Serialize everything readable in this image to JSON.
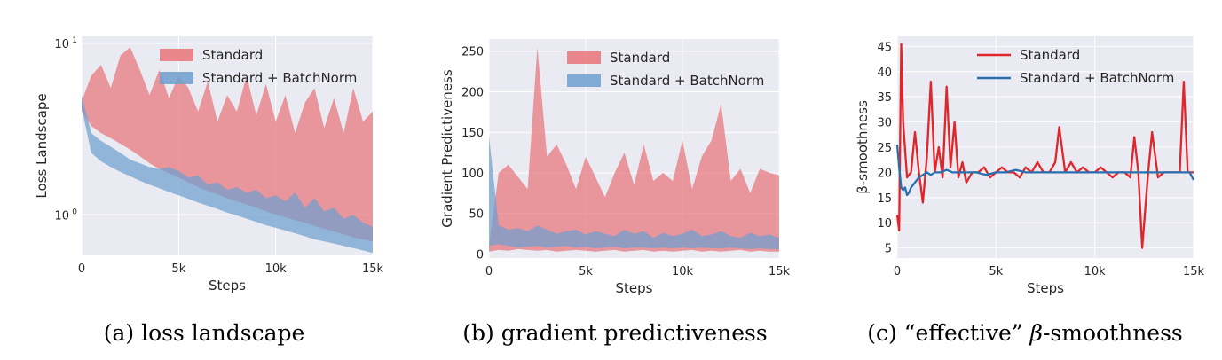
{
  "colors": {
    "standard": "#e0262b",
    "batchnorm": "#2a6fad",
    "standard_fill": "#e8747a",
    "batchnorm_fill": "#6fa0cf",
    "panel_bg": "#eaeaf2",
    "grid": "#ffffff"
  },
  "chart_data": [
    {
      "type": "area",
      "title": "",
      "xlabel": "Steps",
      "ylabel": "Loss Landscape",
      "yscale": "log",
      "xlim": [
        0,
        15000
      ],
      "ylim": [
        0.58,
        11
      ],
      "xticks": [
        {
          "value": 0,
          "label": "0"
        },
        {
          "value": 5000,
          "label": "5k"
        },
        {
          "value": 10000,
          "label": "10k"
        },
        {
          "value": 15000,
          "label": "15k"
        }
      ],
      "yticks": [
        {
          "value": 1,
          "label": "10",
          "sup": "0"
        },
        {
          "value": 10,
          "label": "10",
          "sup": "1"
        }
      ],
      "legend": {
        "position": "top-right",
        "standard": "Standard",
        "batchnorm": "Standard + BatchNorm",
        "style": "patch"
      },
      "series": [
        {
          "name": "Standard",
          "x": [
            0,
            500,
            1000,
            1500,
            2000,
            2500,
            3000,
            3500,
            4000,
            4500,
            5000,
            5500,
            6000,
            6500,
            7000,
            7500,
            8000,
            8500,
            9000,
            9500,
            10000,
            10500,
            11000,
            11500,
            12000,
            12500,
            13000,
            13500,
            14000,
            14500,
            15000
          ],
          "lower": [
            4.0,
            3.3,
            3.0,
            2.8,
            2.6,
            2.4,
            2.2,
            2.0,
            1.85,
            1.75,
            1.65,
            1.55,
            1.45,
            1.38,
            1.32,
            1.25,
            1.2,
            1.15,
            1.1,
            1.05,
            1.0,
            0.97,
            0.93,
            0.9,
            0.86,
            0.83,
            0.8,
            0.77,
            0.74,
            0.72,
            0.7
          ],
          "upper": [
            4.6,
            6.5,
            7.5,
            5.5,
            8.5,
            9.5,
            7.0,
            5.0,
            7.0,
            4.8,
            6.5,
            5.5,
            4.0,
            6.0,
            3.5,
            5.0,
            4.0,
            6.5,
            3.8,
            5.8,
            3.5,
            5.0,
            3.0,
            4.5,
            5.5,
            3.2,
            4.8,
            3.0,
            5.5,
            3.5,
            4.0
          ]
        },
        {
          "name": "Standard + BatchNorm",
          "x": [
            0,
            500,
            1000,
            1500,
            2000,
            2500,
            3000,
            3500,
            4000,
            4500,
            5000,
            5500,
            6000,
            6500,
            7000,
            7500,
            8000,
            8500,
            9000,
            9500,
            10000,
            10500,
            11000,
            11500,
            12000,
            12500,
            13000,
            13500,
            14000,
            14500,
            15000
          ],
          "lower": [
            4.2,
            2.3,
            2.05,
            1.9,
            1.78,
            1.68,
            1.58,
            1.5,
            1.43,
            1.36,
            1.3,
            1.24,
            1.18,
            1.13,
            1.08,
            1.03,
            0.99,
            0.95,
            0.91,
            0.87,
            0.84,
            0.81,
            0.78,
            0.75,
            0.72,
            0.7,
            0.68,
            0.66,
            0.64,
            0.62,
            0.6
          ],
          "upper": [
            5.0,
            3.0,
            2.7,
            2.5,
            2.3,
            2.1,
            2.0,
            1.9,
            1.85,
            1.9,
            1.8,
            1.65,
            1.7,
            1.5,
            1.55,
            1.4,
            1.45,
            1.35,
            1.4,
            1.25,
            1.3,
            1.2,
            1.35,
            1.1,
            1.25,
            1.05,
            1.1,
            0.95,
            1.0,
            0.9,
            0.85
          ]
        }
      ]
    },
    {
      "type": "area",
      "title": "",
      "xlabel": "Steps",
      "ylabel": "Gradient Predictiveness",
      "yscale": "linear",
      "xlim": [
        0,
        15000
      ],
      "ylim": [
        -5,
        265
      ],
      "xticks": [
        {
          "value": 0,
          "label": "0"
        },
        {
          "value": 5000,
          "label": "5k"
        },
        {
          "value": 10000,
          "label": "10k"
        },
        {
          "value": 15000,
          "label": "15k"
        }
      ],
      "yticks": [
        {
          "value": 0,
          "label": "0"
        },
        {
          "value": 50,
          "label": "50"
        },
        {
          "value": 100,
          "label": "100"
        },
        {
          "value": 150,
          "label": "150"
        },
        {
          "value": 200,
          "label": "200"
        },
        {
          "value": 250,
          "label": "250"
        }
      ],
      "legend": {
        "position": "top-right",
        "standard": "Standard",
        "batchnorm": "Standard + BatchNorm",
        "style": "patch"
      },
      "series": [
        {
          "name": "Standard",
          "x": [
            0,
            500,
            1000,
            1500,
            2000,
            2500,
            3000,
            3500,
            4000,
            4500,
            5000,
            5500,
            6000,
            6500,
            7000,
            7500,
            8000,
            8500,
            9000,
            9500,
            10000,
            10500,
            11000,
            11500,
            12000,
            12500,
            13000,
            13500,
            14000,
            14500,
            15000
          ],
          "lower": [
            3,
            5,
            4,
            6,
            5,
            4,
            5,
            3,
            4,
            5,
            4,
            3,
            4,
            5,
            3,
            4,
            5,
            3,
            4,
            3,
            4,
            5,
            3,
            4,
            3,
            4,
            5,
            3,
            4,
            3,
            3
          ],
          "upper": [
            10,
            100,
            110,
            95,
            80,
            255,
            120,
            135,
            110,
            80,
            120,
            95,
            70,
            100,
            125,
            85,
            135,
            90,
            100,
            90,
            140,
            80,
            120,
            140,
            185,
            90,
            105,
            75,
            105,
            100,
            97
          ]
        },
        {
          "name": "Standard + BatchNorm",
          "x": [
            0,
            500,
            1000,
            1500,
            2000,
            2500,
            3000,
            3500,
            4000,
            4500,
            5000,
            5500,
            6000,
            6500,
            7000,
            7500,
            8000,
            8500,
            9000,
            9500,
            10000,
            10500,
            11000,
            11500,
            12000,
            12500,
            13000,
            13500,
            14000,
            14500,
            15000
          ],
          "lower": [
            10,
            12,
            10,
            8,
            9,
            10,
            8,
            9,
            10,
            8,
            9,
            7,
            8,
            9,
            7,
            8,
            8,
            7,
            8,
            7,
            8,
            7,
            8,
            7,
            7,
            8,
            7,
            6,
            7,
            6,
            6
          ],
          "upper": [
            145,
            35,
            30,
            32,
            28,
            35,
            30,
            25,
            28,
            30,
            24,
            28,
            25,
            22,
            30,
            25,
            28,
            20,
            26,
            22,
            25,
            30,
            22,
            24,
            28,
            22,
            20,
            26,
            22,
            24,
            20
          ]
        }
      ]
    },
    {
      "type": "line",
      "title": "",
      "xlabel": "Steps",
      "ylabel": "β-smoothness",
      "yscale": "linear",
      "xlim": [
        0,
        15000
      ],
      "ylim": [
        3,
        47
      ],
      "xticks": [
        {
          "value": 0,
          "label": "0"
        },
        {
          "value": 5000,
          "label": "5k"
        },
        {
          "value": 10000,
          "label": "10k"
        },
        {
          "value": 15000,
          "label": "15k"
        }
      ],
      "yticks": [
        {
          "value": 5,
          "label": "5"
        },
        {
          "value": 10,
          "label": "10"
        },
        {
          "value": 15,
          "label": "15"
        },
        {
          "value": 20,
          "label": "20"
        },
        {
          "value": 25,
          "label": "25"
        },
        {
          "value": 30,
          "label": "30"
        },
        {
          "value": 35,
          "label": "35"
        },
        {
          "value": 40,
          "label": "40"
        },
        {
          "value": 45,
          "label": "45"
        }
      ],
      "legend": {
        "position": "top-right",
        "standard": "Standard",
        "batchnorm": "Standard + BatchNorm",
        "style": "line"
      },
      "series": [
        {
          "name": "Standard",
          "x": [
            0,
            100,
            200,
            300,
            500,
            700,
            900,
            1100,
            1300,
            1500,
            1700,
            1900,
            2100,
            2300,
            2500,
            2700,
            2900,
            3100,
            3300,
            3500,
            3800,
            4100,
            4400,
            4700,
            5000,
            5300,
            5600,
            5900,
            6200,
            6500,
            6800,
            7100,
            7400,
            7700,
            8000,
            8200,
            8500,
            8800,
            9100,
            9400,
            9700,
            10000,
            10300,
            10600,
            10900,
            11200,
            11500,
            11800,
            12000,
            12200,
            12400,
            12700,
            12900,
            13200,
            13500,
            13800,
            14100,
            14300,
            14500,
            14700,
            15000
          ],
          "y": [
            11.5,
            8.5,
            45.5,
            30,
            19,
            20,
            28,
            20,
            14,
            23,
            38,
            20,
            25,
            19,
            37,
            21,
            30,
            19,
            22,
            18,
            20,
            20,
            21,
            19,
            20,
            21,
            20,
            20,
            19,
            21,
            20,
            22,
            20,
            20,
            22,
            29,
            20,
            22,
            20,
            21,
            20,
            20,
            21,
            20,
            19,
            20,
            20,
            19,
            27,
            20,
            5,
            20,
            28,
            19,
            20,
            20,
            20,
            20,
            38,
            20,
            20
          ]
        },
        {
          "name": "Standard + BatchNorm",
          "x": [
            0,
            100,
            200,
            300,
            400,
            500,
            600,
            700,
            900,
            1100,
            1300,
            1500,
            1700,
            1900,
            2200,
            2500,
            2800,
            3100,
            3500,
            4000,
            4500,
            5000,
            5500,
            6000,
            6500,
            7000,
            7500,
            8000,
            8500,
            9000,
            9500,
            10000,
            10500,
            11000,
            11500,
            12000,
            12500,
            13000,
            13500,
            14000,
            14500,
            14800,
            15000
          ],
          "y": [
            25.5,
            21,
            17,
            16.5,
            17,
            15.5,
            16,
            17,
            18,
            19,
            19.5,
            20,
            19.5,
            20,
            20,
            20.5,
            20,
            20,
            20,
            20,
            19.5,
            20,
            20,
            20.5,
            20,
            20,
            20,
            20,
            20,
            20,
            20,
            20,
            20,
            20,
            20,
            20,
            20,
            20,
            20,
            20,
            20,
            20,
            18.5
          ]
        }
      ]
    }
  ],
  "captions": {
    "a": "(a) loss landscape",
    "b": "(b) gradient predictiveness",
    "c_prefix": "(c) “effective” ",
    "c_beta": "β",
    "c_suffix": "-smoothness"
  }
}
